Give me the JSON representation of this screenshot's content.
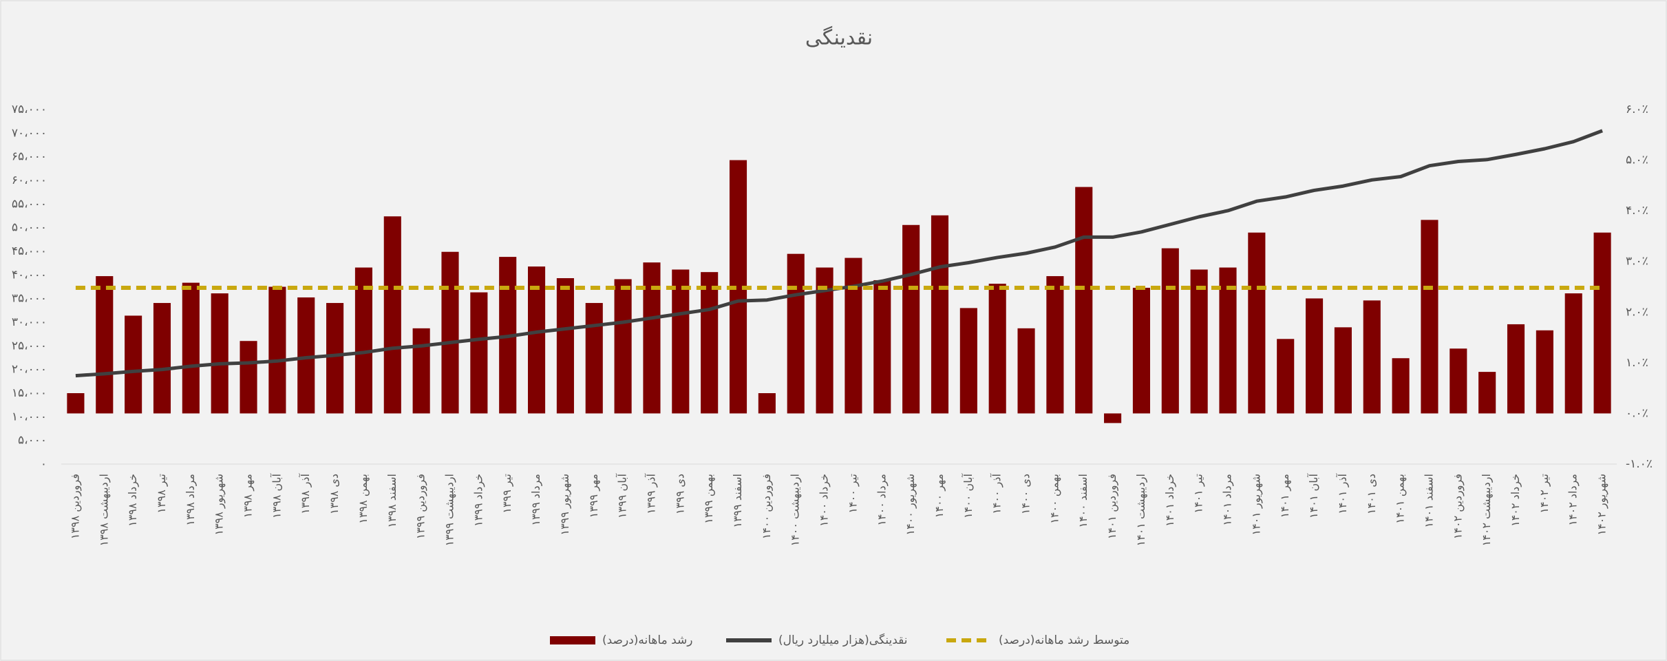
{
  "chart_data": {
    "type": "combo",
    "title": "نقدینگی",
    "categories": [
      "فروردین ۱۳۹۸",
      "اردیبهشت ۱۳۹۸",
      "خرداد ۱۳۹۸",
      "تیر ۱۳۹۸",
      "مرداد ۱۳۹۸",
      "شهریور ۱۳۹۸",
      "مهر ۱۳۹۸",
      "آبان ۱۳۹۸",
      "آذر ۱۳۹۸",
      "دی ۱۳۹۸",
      "بهمن ۱۳۹۸",
      "اسفند ۱۳۹۸",
      "فروردین ۱۳۹۹",
      "اردیبهشت ۱۳۹۹",
      "خرداد ۱۳۹۹",
      "تیر ۱۳۹۹",
      "مرداد ۱۳۹۹",
      "شهریور ۱۳۹۹",
      "مهر ۱۳۹۹",
      "آبان ۱۳۹۹",
      "آذر ۱۳۹۹",
      "دی ۱۳۹۹",
      "بهمن ۱۳۹۹",
      "اسفند ۱۳۹۹",
      "فروردین ۱۴۰۰",
      "اردیبهشت ۱۴۰۰",
      "خرداد ۱۴۰۰",
      "تیر ۱۴۰۰",
      "مرداد ۱۴۰۰",
      "شهریور ۱۴۰۰",
      "مهر ۱۴۰۰",
      "آبان ۱۴۰۰",
      "آذر ۱۴۰۰",
      "دی ۱۴۰۰",
      "بهمن ۱۴۰۰",
      "اسفند ۱۴۰۰",
      "فروردین ۱۴۰۱",
      "اردیبهشت ۱۴۰۱",
      "خرداد ۱۴۰۱",
      "تیر ۱۴۰۱",
      "مرداد ۱۴۰۱",
      "شهریور ۱۴۰۱",
      "مهر ۱۴۰۱",
      "آبان ۱۴۰۱",
      "آذر ۱۴۰۱",
      "دی ۱۴۰۱",
      "بهمن ۱۴۰۱",
      "اسفند ۱۴۰۱",
      "فروردین ۱۴۰۲",
      "اردیبهشت ۱۴۰۲",
      "خرداد ۱۴۰۲",
      "تیر ۱۴۰۲",
      "مرداد ۱۴۰۲",
      "شهریور ۱۴۰۲"
    ],
    "series": [
      {
        "name": "رشد ماهانه(درصد)",
        "type": "bar",
        "axis": "y2",
        "color": "#7f0000",
        "values": [
          0.4,
          2.71,
          1.93,
          2.18,
          2.58,
          2.37,
          1.43,
          2.5,
          2.29,
          2.18,
          2.88,
          3.89,
          1.68,
          3.19,
          2.39,
          3.09,
          2.9,
          2.67,
          2.18,
          2.65,
          2.98,
          2.84,
          2.79,
          5.0,
          0.4,
          3.15,
          2.88,
          3.07,
          2.63,
          3.72,
          3.91,
          2.08,
          2.56,
          1.68,
          2.71,
          4.47,
          -0.19,
          2.48,
          3.26,
          2.84,
          2.88,
          3.57,
          1.47,
          2.27,
          1.7,
          2.23,
          1.09,
          3.82,
          1.28,
          0.82,
          1.76,
          1.64,
          2.37,
          3.57
        ]
      },
      {
        "name": "نقدینگی(هزار میلیارد ریال)",
        "type": "line",
        "color": "#404040",
        "values": [
          18700,
          19100,
          19600,
          20000,
          20700,
          21200,
          21400,
          21800,
          22500,
          23000,
          23600,
          24500,
          25000,
          25700,
          26400,
          27000,
          27900,
          28600,
          29300,
          30000,
          30900,
          31800,
          32700,
          34500,
          34700,
          35800,
          36700,
          37600,
          38700,
          40100,
          41700,
          42600,
          43700,
          44600,
          45900,
          48000,
          48000,
          49100,
          50700,
          52300,
          53600,
          55600,
          56500,
          57900,
          58800,
          60100,
          60800,
          63100,
          64000,
          64400,
          65500,
          66700,
          68200,
          70500
        ]
      },
      {
        "name": "متوسط رشد ماهانه(درصد)",
        "type": "dashed-line",
        "axis": "y2",
        "color": "#c9a80f",
        "values": [
          2.48,
          2.48,
          2.48,
          2.48,
          2.48,
          2.48,
          2.48,
          2.48,
          2.48,
          2.48,
          2.48,
          2.48,
          2.48,
          2.48,
          2.48,
          2.48,
          2.48,
          2.48,
          2.48,
          2.48,
          2.48,
          2.48,
          2.48,
          2.48,
          2.48,
          2.48,
          2.48,
          2.48,
          2.48,
          2.48,
          2.48,
          2.48,
          2.48,
          2.48,
          2.48,
          2.48,
          2.48,
          2.48,
          2.48,
          2.48,
          2.48,
          2.48,
          2.48,
          2.48,
          2.48,
          2.48,
          2.48,
          2.48,
          2.48,
          2.48,
          2.48,
          2.48,
          2.48,
          2.48
        ]
      }
    ],
    "ylim": [
      0,
      75000
    ],
    "yticks": [
      {
        "value": 0,
        "label": "۰"
      },
      {
        "value": 5000,
        "label": "۵،۰۰۰"
      },
      {
        "value": 10000,
        "label": "۱۰،۰۰۰"
      },
      {
        "value": 15000,
        "label": "۱۵،۰۰۰"
      },
      {
        "value": 20000,
        "label": "۲۰،۰۰۰"
      },
      {
        "value": 25000,
        "label": "۲۵،۰۰۰"
      },
      {
        "value": 30000,
        "label": "۳۰،۰۰۰"
      },
      {
        "value": 35000,
        "label": "۳۵،۰۰۰"
      },
      {
        "value": 40000,
        "label": "۴۰،۰۰۰"
      },
      {
        "value": 45000,
        "label": "۴۵،۰۰۰"
      },
      {
        "value": 50000,
        "label": "۵۰،۰۰۰"
      },
      {
        "value": 55000,
        "label": "۵۵،۰۰۰"
      },
      {
        "value": 60000,
        "label": "۶۰،۰۰۰"
      },
      {
        "value": 65000,
        "label": "۶۵،۰۰۰"
      },
      {
        "value": 70000,
        "label": "۷۰،۰۰۰"
      },
      {
        "value": 75000,
        "label": "۷۵،۰۰۰"
      }
    ],
    "y2lim": [
      -1,
      6
    ],
    "y2ticks": [
      {
        "value": -1,
        "label": "-۱.۰٪"
      },
      {
        "value": 0,
        "label": "۰.۰٪"
      },
      {
        "value": 1,
        "label": "۱.۰٪"
      },
      {
        "value": 2,
        "label": "۲.۰٪"
      },
      {
        "value": 3,
        "label": "۳.۰٪"
      },
      {
        "value": 4,
        "label": "۴.۰٪"
      },
      {
        "value": 5,
        "label": "۵.۰٪"
      },
      {
        "value": 6,
        "label": "۶.۰٪"
      }
    ],
    "legend": "bottom"
  }
}
